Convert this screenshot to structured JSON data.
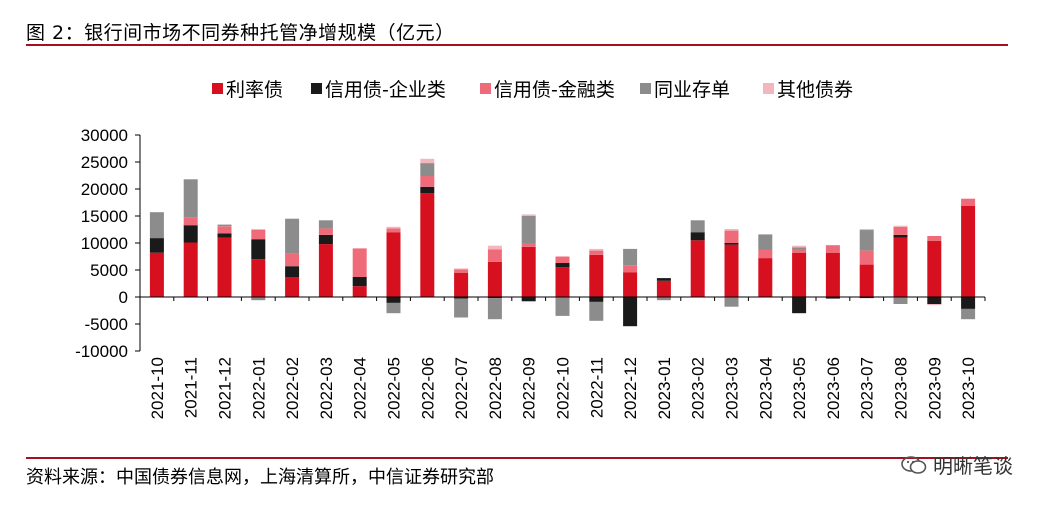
{
  "title": "图 2：银行间市场不同券种托管净增规模（亿元）",
  "source": "资料来源：中国债券信息网，上海清算所，中信证券研究部",
  "watermark": "明晰笔谈",
  "chart_data": {
    "type": "bar",
    "stacked": true,
    "categories": [
      "2021-10",
      "2021-11",
      "2021-12",
      "2022-01",
      "2022-02",
      "2022-03",
      "2022-04",
      "2022-05",
      "2022-06",
      "2022-07",
      "2022-08",
      "2022-09",
      "2022-10",
      "2022-11",
      "2022-12",
      "2023-01",
      "2023-02",
      "2023-03",
      "2023-04",
      "2023-05",
      "2023-06",
      "2023-07",
      "2023-08",
      "2023-09",
      "2023-10"
    ],
    "ylim": [
      -10000,
      30000
    ],
    "yticks": [
      -10000,
      -5000,
      0,
      5000,
      10000,
      15000,
      20000,
      25000,
      30000
    ],
    "legend_position": "top",
    "series": [
      {
        "name": "利率债",
        "color": "#d7101f",
        "values": [
          8200,
          10100,
          11000,
          7000,
          3700,
          9800,
          2000,
          12000,
          19200,
          4500,
          6500,
          9300,
          5500,
          7800,
          4600,
          3000,
          10500,
          9700,
          7200,
          8200,
          8200,
          6000,
          11000,
          10400,
          16900
        ]
      },
      {
        "name": "信用债-企业类",
        "color": "#1a1a1a",
        "values": [
          2700,
          3200,
          800,
          3700,
          2000,
          1700,
          1700,
          -1100,
          1200,
          -300,
          -200,
          -800,
          800,
          -900,
          -5400,
          500,
          1500,
          300,
          -100,
          -3000,
          -300,
          -200,
          500,
          -1300,
          -2200
        ]
      },
      {
        "name": "信用债-金融类",
        "color": "#ef6b79",
        "values": [
          0,
          1500,
          1300,
          1800,
          2300,
          1200,
          5300,
          700,
          2000,
          600,
          2300,
          700,
          1200,
          800,
          1200,
          0,
          0,
          2300,
          1600,
          600,
          1400,
          2600,
          1500,
          900,
          1300
        ]
      },
      {
        "name": "同业存单",
        "color": "#8c8c8c",
        "values": [
          4800,
          7000,
          300,
          -600,
          6500,
          1500,
          0,
          -1900,
          2400,
          -3500,
          -3900,
          5000,
          -3500,
          -3500,
          3100,
          -600,
          2200,
          -1800,
          2800,
          400,
          0,
          3800,
          -1300,
          0,
          -1900
        ]
      },
      {
        "name": "其他债券",
        "color": "#f4b6bd",
        "values": [
          0,
          0,
          0,
          0,
          0,
          0,
          0,
          300,
          800,
          200,
          700,
          300,
          0,
          300,
          0,
          0,
          0,
          300,
          0,
          300,
          0,
          200,
          200,
          -200,
          0
        ]
      }
    ]
  }
}
